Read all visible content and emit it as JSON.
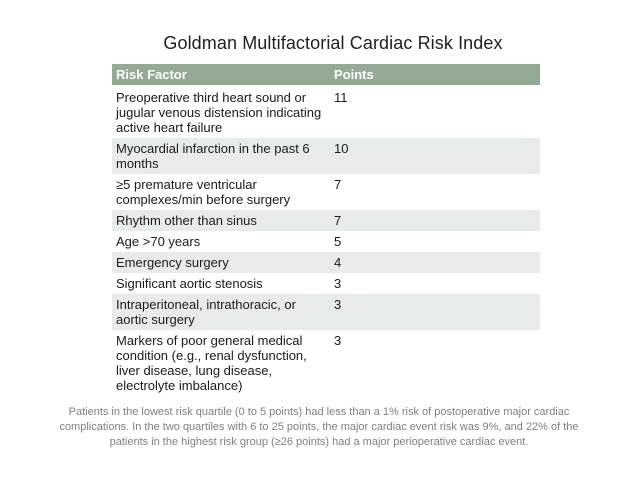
{
  "slide": {
    "title": "Goldman Multifactorial Cardiac Risk Index",
    "footnote": "Patients in the lowest risk quartile (0 to 5 points) had less than a 1% risk of postoperative major cardiac\ncomplications. In the two quartiles with 6 to 25 points, the major cardiac event risk was 9%, and 22% of the\npatients in the highest risk group (≥26 points) had a major perioperative cardiac event."
  },
  "colors": {
    "header_bg": "#94aa94",
    "banded_row_bg": "#e8ece8",
    "header_text": "#ffffff",
    "body_text": "#1a1a1a",
    "footnote_text": "#7f7f7f",
    "background": "#ffffff"
  },
  "table": {
    "headers": [
      "Risk Factor",
      "Points"
    ],
    "rows": [
      {
        "factor": "Preoperative third heart sound or\njugular venous distension indicating\nactive heart failure",
        "points": "11"
      },
      {
        "factor": "Myocardial infarction in the past 6\nmonths",
        "points": "10"
      },
      {
        "factor": "≥5 premature ventricular\ncomplexes/min before surgery",
        "points": "7"
      },
      {
        "factor": "Rhythm other than sinus",
        "points": "7"
      },
      {
        "factor": "Age >70 years",
        "points": "5"
      },
      {
        "factor": "Emergency surgery",
        "points": "4"
      },
      {
        "factor": "Significant aortic stenosis",
        "points": "3"
      },
      {
        "factor": "Intraperitoneal, intrathoracic, or\naortic surgery",
        "points": "3"
      },
      {
        "factor": "Markers of poor general medical\ncondition (e.g., renal dysfunction,\nliver disease, lung disease,\nelectrolyte imbalance)",
        "points": "3"
      }
    ]
  }
}
